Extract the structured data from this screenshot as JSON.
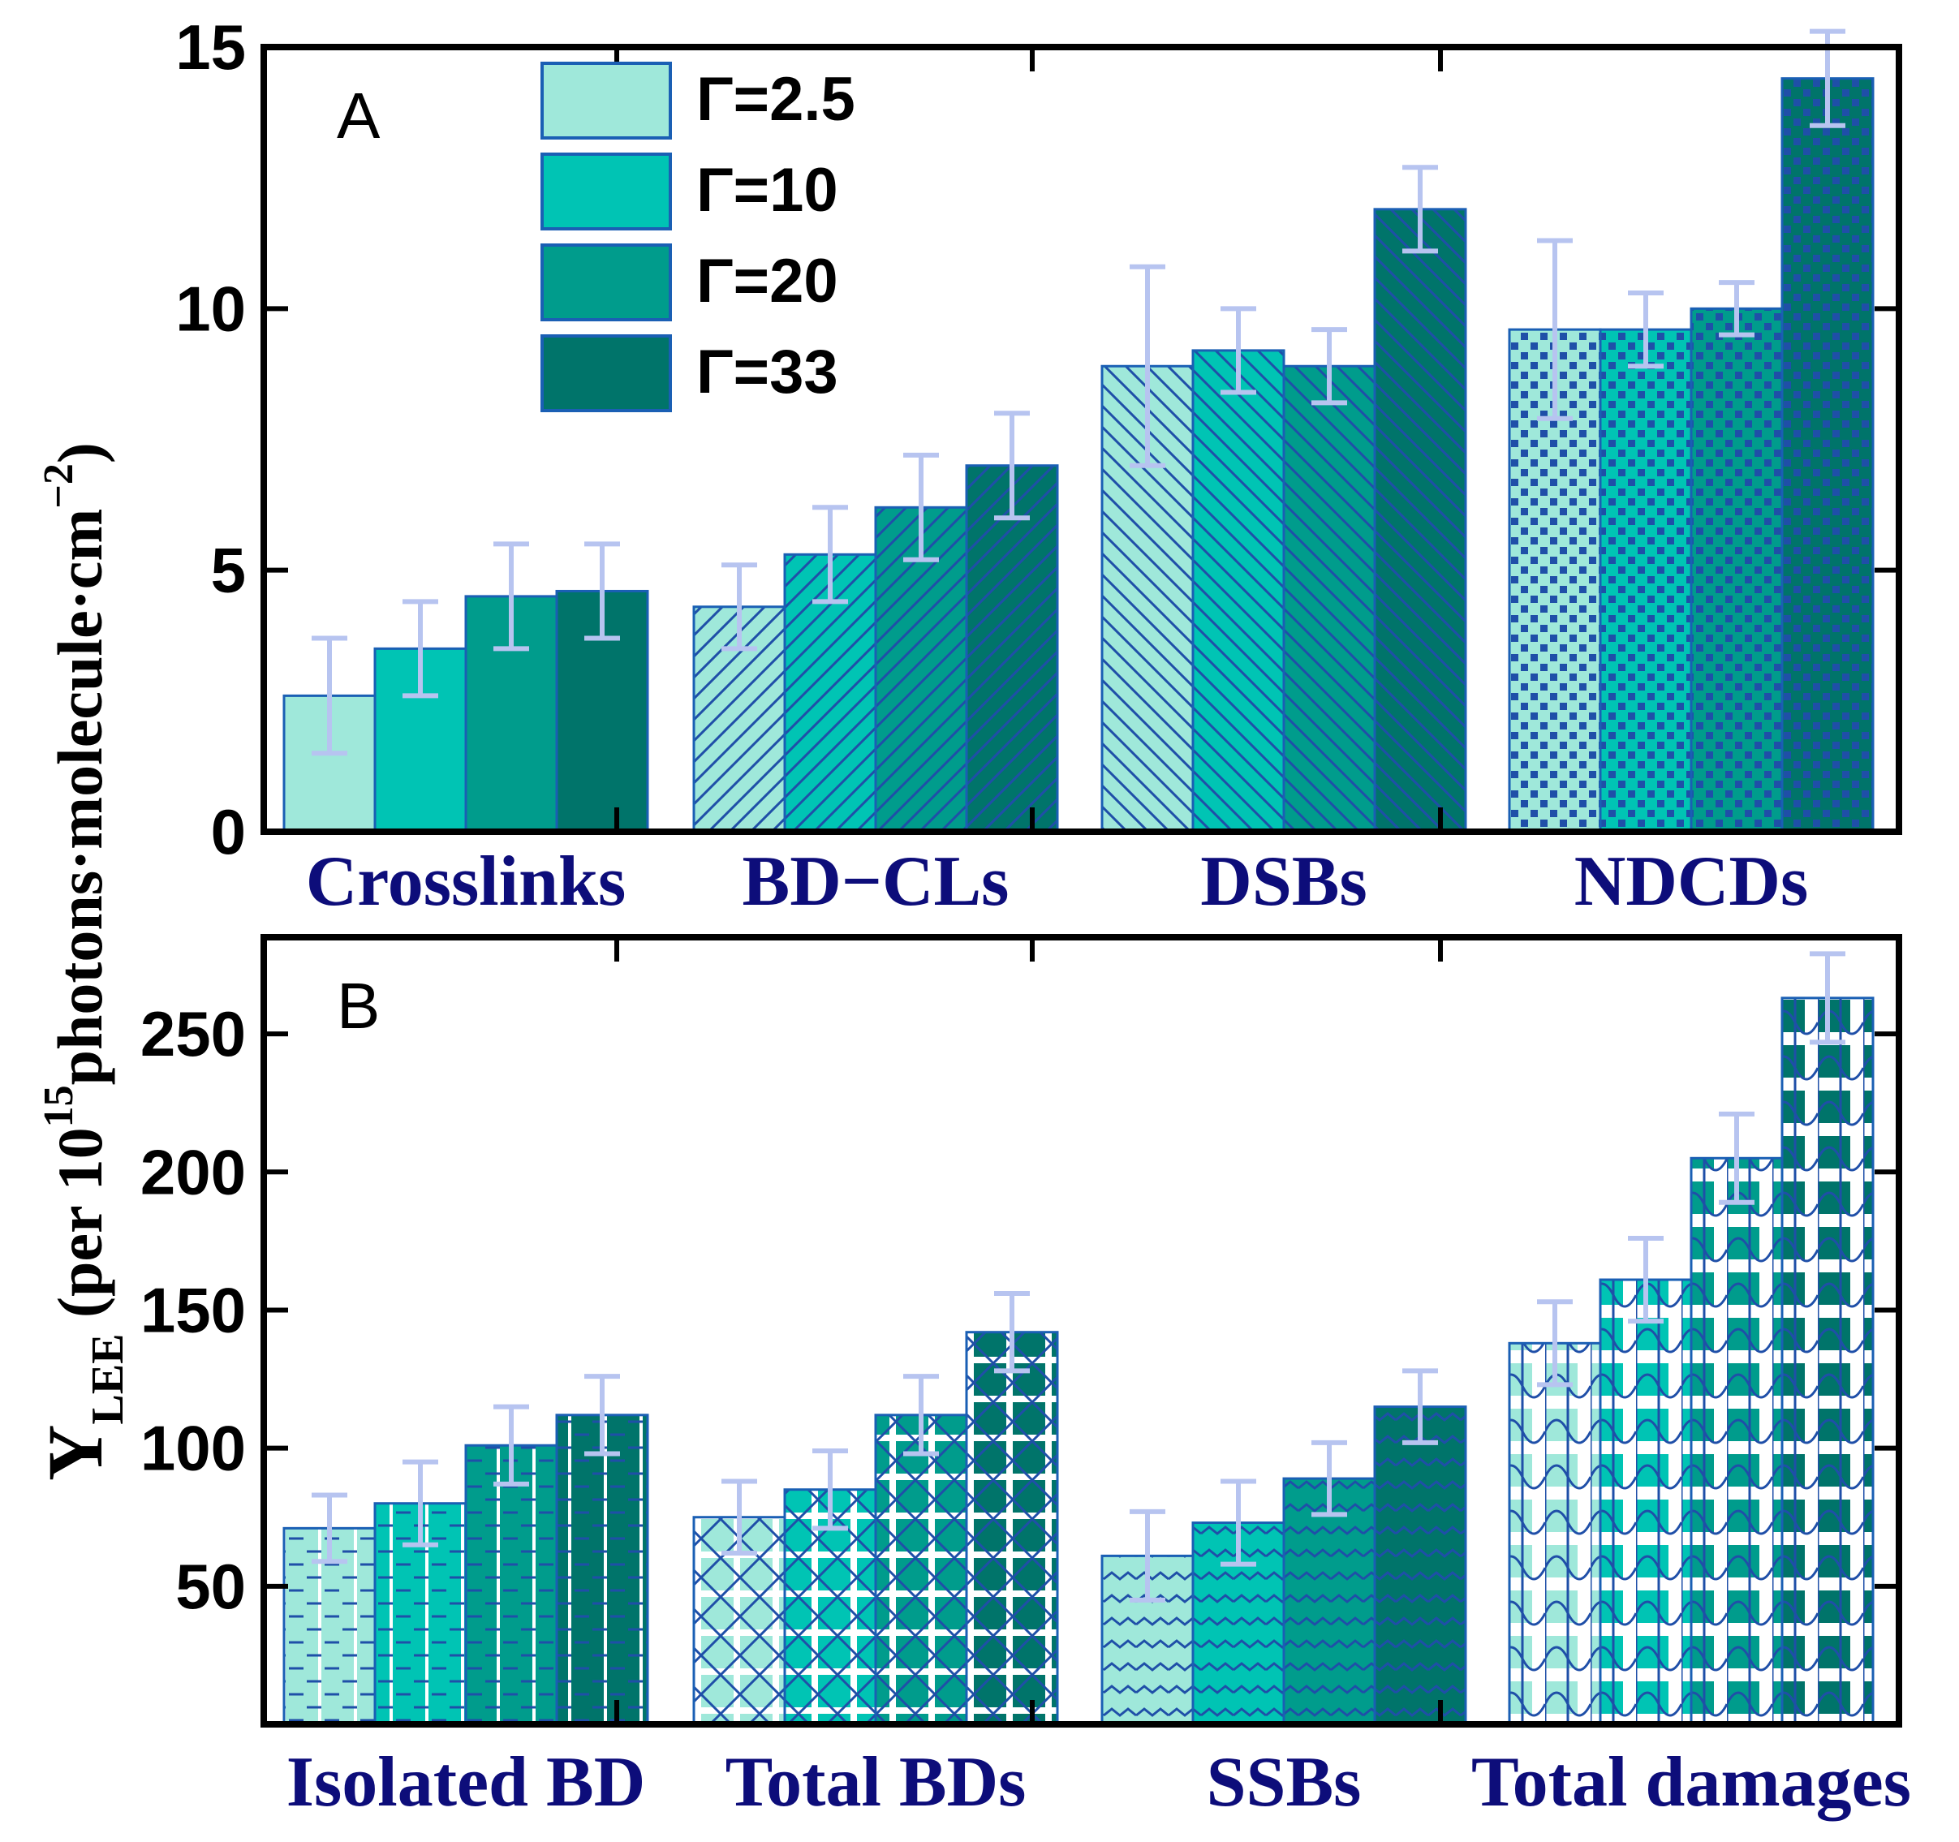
{
  "chart_data": [
    {
      "type": "bar",
      "panel_label": "A",
      "categories": [
        "Crosslinks",
        "BD−CLs",
        "DSBs",
        "NDCDs"
      ],
      "series": [
        {
          "name": "Γ=2.5",
          "values": [
            2.6,
            4.3,
            8.9,
            9.6
          ],
          "errors": [
            1.1,
            0.8,
            1.9,
            1.7
          ]
        },
        {
          "name": "Γ=10",
          "values": [
            3.5,
            5.3,
            9.2,
            9.6
          ],
          "errors": [
            0.9,
            0.9,
            0.8,
            0.7
          ]
        },
        {
          "name": "Γ=20",
          "values": [
            4.5,
            6.2,
            8.9,
            10.0
          ],
          "errors": [
            1.0,
            1.0,
            0.7,
            0.5
          ]
        },
        {
          "name": "Γ=33",
          "values": [
            4.6,
            7.0,
            11.9,
            14.4
          ],
          "errors": [
            0.9,
            1.0,
            0.8,
            0.9
          ]
        }
      ],
      "ylim": [
        0,
        15
      ],
      "yticks": [
        0,
        5,
        10,
        15
      ],
      "legend": "top-left"
    },
    {
      "type": "bar",
      "panel_label": "B",
      "categories": [
        "Isolated BD",
        "Total BDs",
        "SSBs",
        "Total damages"
      ],
      "series": [
        {
          "name": "Γ=2.5",
          "values": [
            71,
            75,
            61,
            138
          ],
          "errors": [
            12,
            13,
            16,
            15
          ]
        },
        {
          "name": "Γ=10",
          "values": [
            80,
            85,
            73,
            161
          ],
          "errors": [
            15,
            14,
            15,
            15
          ]
        },
        {
          "name": "Γ=20",
          "values": [
            101,
            112,
            89,
            205
          ],
          "errors": [
            14,
            14,
            13,
            16
          ]
        },
        {
          "name": "Γ=33",
          "values": [
            112,
            142,
            115,
            263
          ],
          "errors": [
            14,
            14,
            13,
            16
          ]
        }
      ],
      "ylim": [
        0,
        285
      ],
      "yticks": [
        50,
        100,
        150,
        200,
        250
      ]
    }
  ],
  "ylabel": {
    "main": "Y",
    "subscript": "LEE",
    "text1": " (per 10",
    "superscript1": "15",
    "text2": "photons·molecule·cm",
    "superscript2": "−2",
    "text3": ")"
  },
  "colors": {
    "series": [
      "#9fe8da",
      "#00c4b4",
      "#009c8c",
      "#00746a"
    ],
    "pattern_line": "#1f4fa8",
    "bar_stroke": "#1a5fb4",
    "error_bar": "#b7c4f0",
    "category_text": "#0d0d7a",
    "axis": "#000000"
  }
}
